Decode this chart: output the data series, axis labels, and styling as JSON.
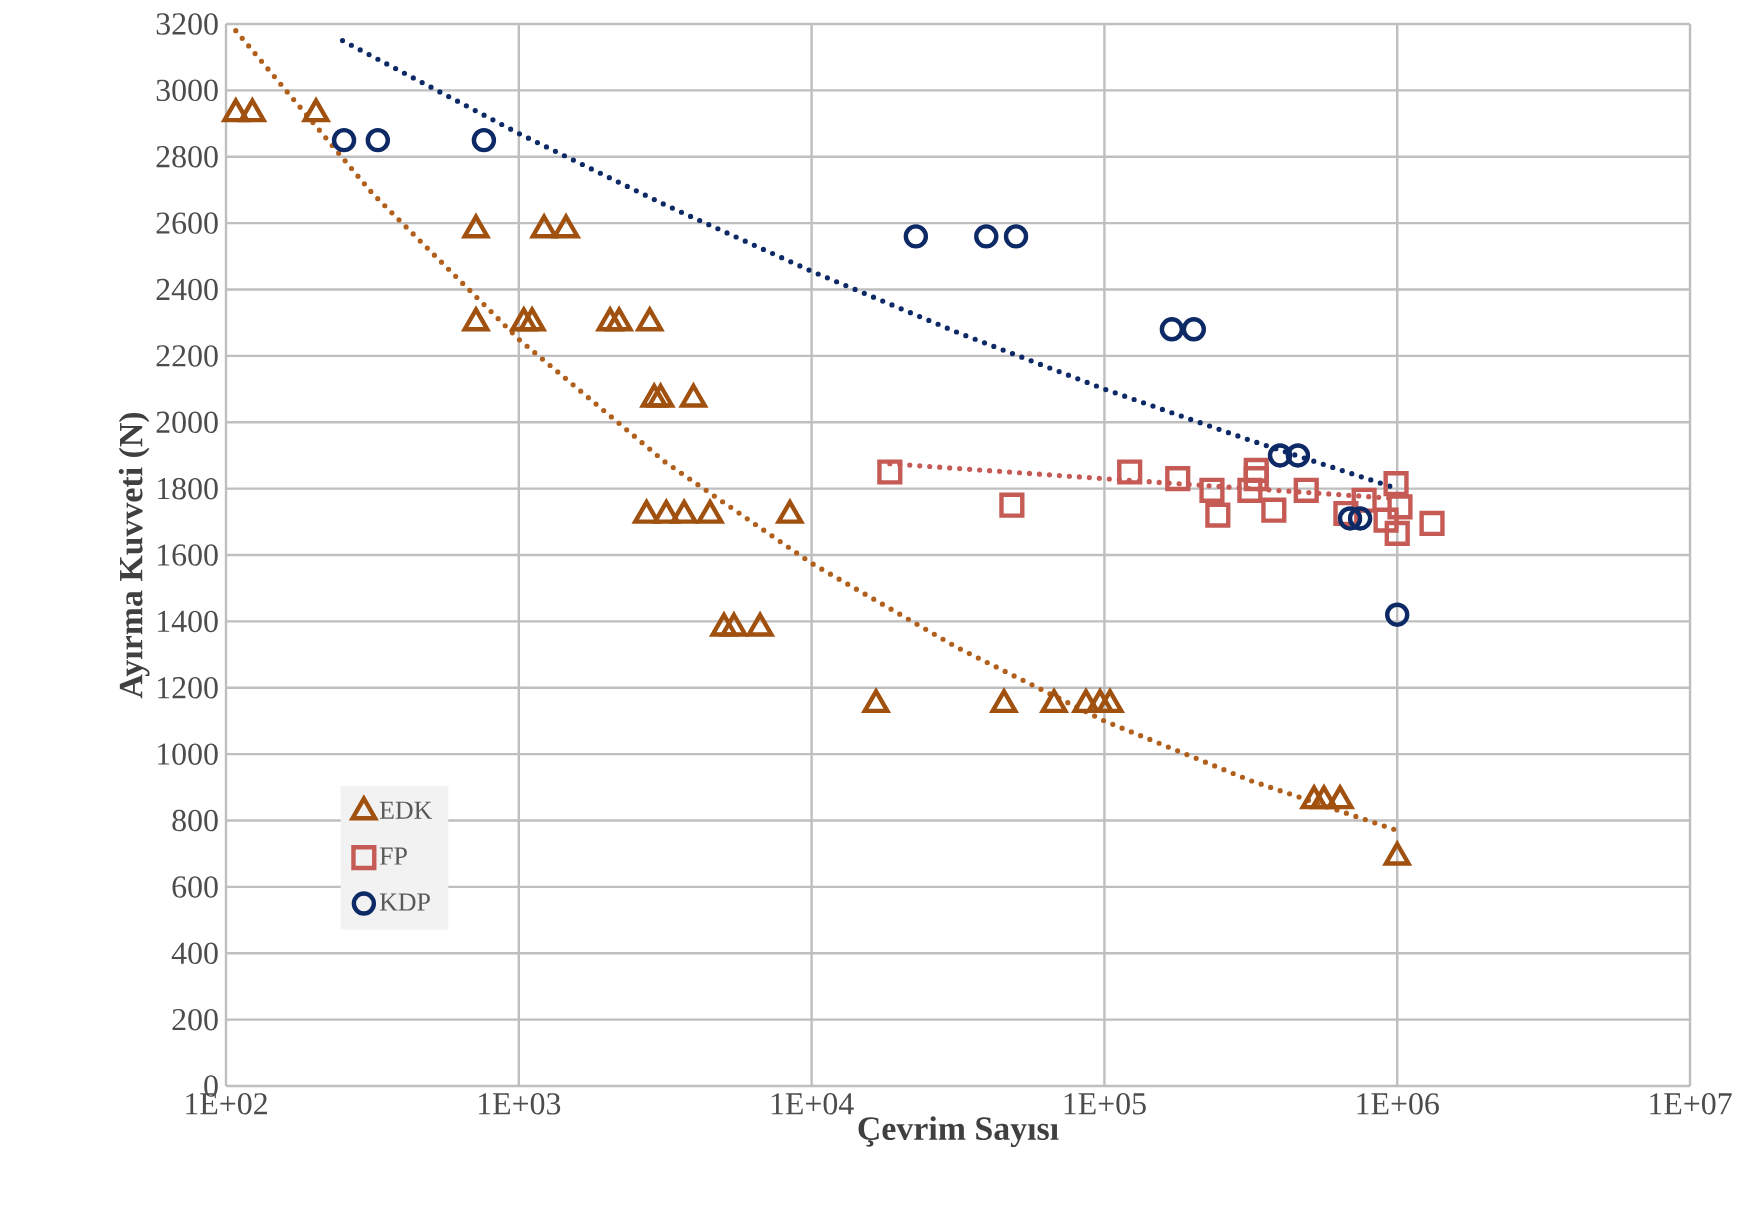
{
  "chart_data": {
    "type": "scatter",
    "xlabel": "Çevrim Sayısı",
    "ylabel": "Ayırma Kuvveti (N)",
    "log": "x",
    "grid": true,
    "legend": "bottom left",
    "xlim": [
      100,
      10000000
    ],
    "ylim": [
      0,
      3200
    ],
    "xticks": [
      {
        "value": 100,
        "label": "1E+02"
      },
      {
        "value": 1000,
        "label": "1E+03"
      },
      {
        "value": 10000,
        "label": "1E+04"
      },
      {
        "value": 100000,
        "label": "1E+05"
      },
      {
        "value": 1000000,
        "label": "1E+06"
      },
      {
        "value": 10000000,
        "label": "1E+07"
      }
    ],
    "yticks": [
      0,
      200,
      400,
      600,
      800,
      1000,
      1200,
      1400,
      1600,
      1800,
      2000,
      2200,
      2400,
      2600,
      2800,
      3000,
      3200
    ],
    "series": [
      {
        "name": "EDK",
        "marker": "triangle",
        "color": "#a0500f",
        "x": [
          108,
          123,
          203,
          714,
          1220,
          1450,
          714,
          1040,
          1110,
          2050,
          2200,
          2800,
          2900,
          3050,
          3950,
          2730,
          3190,
          3670,
          4500,
          8430,
          5020,
          5430,
          6670,
          16600,
          45400,
          67300,
          86500,
          96600,
          104500,
          520000,
          562000,
          638000,
          1000000
        ],
        "values": [
          2930,
          2930,
          2930,
          2580,
          2580,
          2580,
          2300,
          2300,
          2300,
          2300,
          2300,
          2300,
          2070,
          2070,
          2070,
          1720,
          1720,
          1720,
          1720,
          1720,
          1380,
          1380,
          1380,
          1150,
          1150,
          1150,
          1150,
          1150,
          1150,
          860,
          860,
          860,
          690
        ]
      },
      {
        "name": "FP",
        "marker": "square",
        "color": "#c65a55",
        "x": [
          18500,
          48300,
          122000,
          178000,
          233000,
          244000,
          314000,
          330000,
          330000,
          379000,
          489000,
          668000,
          771000,
          916000,
          991000,
          1022000,
          1000000,
          1315000
        ],
        "values": [
          1850,
          1750,
          1850,
          1830,
          1795,
          1720,
          1795,
          1855,
          1830,
          1735,
          1795,
          1725,
          1765,
          1705,
          1815,
          1745,
          1665,
          1695
        ]
      },
      {
        "name": "KDP",
        "marker": "circle",
        "color": "#0d2a66",
        "x": [
          253,
          330,
          760,
          22700,
          39500,
          49900,
          170000,
          202000,
          398000,
          458000,
          690000,
          747000,
          1000000
        ],
        "values": [
          2850,
          2850,
          2850,
          2560,
          2560,
          2560,
          2280,
          2280,
          1900,
          1900,
          1710,
          1710,
          1420
        ]
      },
      {
        "type": "line",
        "line_style": "dotted",
        "marker": "none",
        "color": "#b0601c",
        "x": [
          108,
          316,
          1000,
          3162,
          10000,
          31623,
          100000,
          316228,
          1000000
        ],
        "values": [
          3180,
          2690,
          2250,
          1880,
          1575,
          1320,
          1100,
          920,
          770
        ]
      },
      {
        "type": "line",
        "line_style": "dotted",
        "marker": "none",
        "color": "#c65a55",
        "x": [
          18500,
          100000,
          316228,
          1000000
        ],
        "values": [
          1875,
          1830,
          1800,
          1770
        ]
      },
      {
        "type": "line",
        "line_style": "dotted",
        "marker": "none",
        "color": "#0d2a66",
        "x": [
          250,
          1000,
          3162,
          10000,
          31623,
          100000,
          316228,
          1000000
        ],
        "values": [
          3150,
          2870,
          2655,
          2455,
          2270,
          2100,
          1945,
          1800
        ]
      }
    ]
  }
}
